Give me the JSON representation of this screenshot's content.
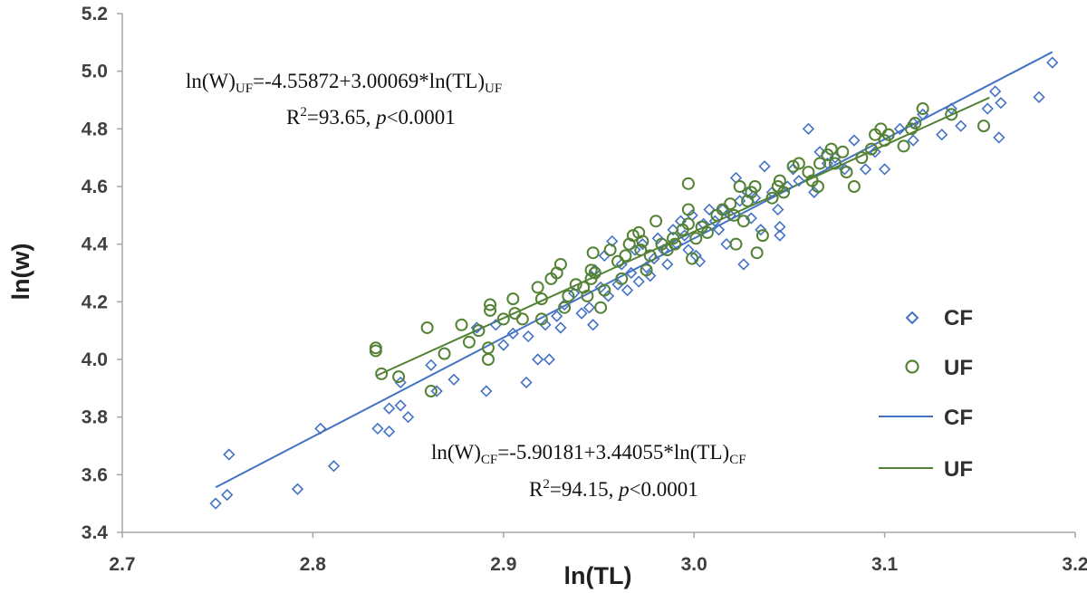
{
  "chart_data": {
    "type": "scatter",
    "xlabel": "ln(TL)",
    "ylabel": "ln(w)",
    "xlim": [
      2.7,
      3.2
    ],
    "ylim": [
      3.4,
      5.2
    ],
    "xticks": [
      "2.7",
      "2.8",
      "2.9",
      "3.0",
      "3.1",
      "3.2"
    ],
    "yticks": [
      "3.4",
      "3.6",
      "3.8",
      "4.0",
      "4.2",
      "4.4",
      "4.6",
      "4.8",
      "5.0",
      "5.2"
    ],
    "grid": false,
    "legend_position": "right",
    "colors": {
      "CF": "#4472C4",
      "UF": "#548235"
    },
    "series": [
      {
        "name": "CF",
        "marker": "diamond",
        "points": [
          [
            2.749,
            3.5
          ],
          [
            2.755,
            3.53
          ],
          [
            2.756,
            3.67
          ],
          [
            2.792,
            3.55
          ],
          [
            2.804,
            3.76
          ],
          [
            2.811,
            3.63
          ],
          [
            2.834,
            3.76
          ],
          [
            2.84,
            3.75
          ],
          [
            2.84,
            3.83
          ],
          [
            2.846,
            3.84
          ],
          [
            2.85,
            3.8
          ],
          [
            2.846,
            3.92
          ],
          [
            2.862,
            3.98
          ],
          [
            2.865,
            3.89
          ],
          [
            2.874,
            3.93
          ],
          [
            2.886,
            4.11
          ],
          [
            2.891,
            3.89
          ],
          [
            2.896,
            4.12
          ],
          [
            2.9,
            4.05
          ],
          [
            2.905,
            4.09
          ],
          [
            2.912,
            3.92
          ],
          [
            2.913,
            4.08
          ],
          [
            2.918,
            4.0
          ],
          [
            2.922,
            4.12
          ],
          [
            2.924,
            4.0
          ],
          [
            2.928,
            4.15
          ],
          [
            2.93,
            4.11
          ],
          [
            2.932,
            4.19
          ],
          [
            2.937,
            4.23
          ],
          [
            2.941,
            4.16
          ],
          [
            2.945,
            4.18
          ],
          [
            2.947,
            4.12
          ],
          [
            2.948,
            4.31
          ],
          [
            2.951,
            4.25
          ],
          [
            2.953,
            4.36
          ],
          [
            2.955,
            4.22
          ],
          [
            2.957,
            4.41
          ],
          [
            2.96,
            4.26
          ],
          [
            2.962,
            4.33
          ],
          [
            2.965,
            4.24
          ],
          [
            2.967,
            4.3
          ],
          [
            2.969,
            4.38
          ],
          [
            2.971,
            4.27
          ],
          [
            2.973,
            4.4
          ],
          [
            2.975,
            4.32
          ],
          [
            2.977,
            4.29
          ],
          [
            2.979,
            4.35
          ],
          [
            2.981,
            4.42
          ],
          [
            2.984,
            4.38
          ],
          [
            2.986,
            4.33
          ],
          [
            2.989,
            4.45
          ],
          [
            2.991,
            4.4
          ],
          [
            2.993,
            4.48
          ],
          [
            2.995,
            4.43
          ],
          [
            2.997,
            4.38
          ],
          [
            2.999,
            4.5
          ],
          [
            3.001,
            4.36
          ],
          [
            3.003,
            4.34
          ],
          [
            3.005,
            4.47
          ],
          [
            3.008,
            4.52
          ],
          [
            3.011,
            4.48
          ],
          [
            3.013,
            4.45
          ],
          [
            3.015,
            4.52
          ],
          [
            3.017,
            4.4
          ],
          [
            3.019,
            4.5
          ],
          [
            3.022,
            4.63
          ],
          [
            3.024,
            4.55
          ],
          [
            3.026,
            4.33
          ],
          [
            3.028,
            4.58
          ],
          [
            3.03,
            4.49
          ],
          [
            3.032,
            4.56
          ],
          [
            3.035,
            4.45
          ],
          [
            3.037,
            4.67
          ],
          [
            3.041,
            4.58
          ],
          [
            3.044,
            4.52
          ],
          [
            3.045,
            4.46
          ],
          [
            3.045,
            4.43
          ],
          [
            3.049,
            4.6
          ],
          [
            3.052,
            4.66
          ],
          [
            3.055,
            4.62
          ],
          [
            3.06,
            4.8
          ],
          [
            3.063,
            4.58
          ],
          [
            3.066,
            4.72
          ],
          [
            3.07,
            4.68
          ],
          [
            3.074,
            4.7
          ],
          [
            3.079,
            4.66
          ],
          [
            3.084,
            4.76
          ],
          [
            3.09,
            4.66
          ],
          [
            3.095,
            4.72
          ],
          [
            3.1,
            4.66
          ],
          [
            3.108,
            4.8
          ],
          [
            3.115,
            4.82
          ],
          [
            3.115,
            4.76
          ],
          [
            3.12,
            4.85
          ],
          [
            3.13,
            4.78
          ],
          [
            3.135,
            4.87
          ],
          [
            3.14,
            4.81
          ],
          [
            3.154,
            4.87
          ],
          [
            3.158,
            4.93
          ],
          [
            3.16,
            4.77
          ],
          [
            3.161,
            4.89
          ],
          [
            3.181,
            4.91
          ],
          [
            3.188,
            5.03
          ]
        ]
      },
      {
        "name": "UF",
        "marker": "circle",
        "points": [
          [
            2.833,
            4.03
          ],
          [
            2.833,
            4.04
          ],
          [
            2.836,
            3.95
          ],
          [
            2.845,
            3.94
          ],
          [
            2.86,
            4.11
          ],
          [
            2.862,
            3.89
          ],
          [
            2.869,
            4.02
          ],
          [
            2.878,
            4.12
          ],
          [
            2.882,
            4.06
          ],
          [
            2.887,
            4.1
          ],
          [
            2.892,
            4.0
          ],
          [
            2.892,
            4.04
          ],
          [
            2.893,
            4.17
          ],
          [
            2.893,
            4.19
          ],
          [
            2.9,
            4.14
          ],
          [
            2.905,
            4.21
          ],
          [
            2.906,
            4.16
          ],
          [
            2.91,
            4.14
          ],
          [
            2.918,
            4.25
          ],
          [
            2.92,
            4.21
          ],
          [
            2.92,
            4.14
          ],
          [
            2.925,
            4.28
          ],
          [
            2.928,
            4.3
          ],
          [
            2.93,
            4.33
          ],
          [
            2.932,
            4.18
          ],
          [
            2.934,
            4.22
          ],
          [
            2.938,
            4.26
          ],
          [
            2.942,
            4.25
          ],
          [
            2.944,
            4.22
          ],
          [
            2.946,
            4.31
          ],
          [
            2.946,
            4.28
          ],
          [
            2.947,
            4.37
          ],
          [
            2.948,
            4.3
          ],
          [
            2.951,
            4.18
          ],
          [
            2.953,
            4.24
          ],
          [
            2.956,
            4.38
          ],
          [
            2.96,
            4.34
          ],
          [
            2.962,
            4.28
          ],
          [
            2.964,
            4.36
          ],
          [
            2.966,
            4.4
          ],
          [
            2.968,
            4.43
          ],
          [
            2.971,
            4.44
          ],
          [
            2.972,
            4.38
          ],
          [
            2.973,
            4.41
          ],
          [
            2.975,
            4.31
          ],
          [
            2.977,
            4.36
          ],
          [
            2.98,
            4.48
          ],
          [
            2.983,
            4.4
          ],
          [
            2.986,
            4.38
          ],
          [
            2.989,
            4.42
          ],
          [
            2.99,
            4.4
          ],
          [
            2.994,
            4.45
          ],
          [
            2.997,
            4.47
          ],
          [
            2.997,
            4.52
          ],
          [
            2.997,
            4.61
          ],
          [
            2.999,
            4.35
          ],
          [
            3.001,
            4.42
          ],
          [
            3.004,
            4.46
          ],
          [
            3.007,
            4.44
          ],
          [
            3.012,
            4.5
          ],
          [
            3.015,
            4.52
          ],
          [
            3.019,
            4.54
          ],
          [
            3.021,
            4.5
          ],
          [
            3.022,
            4.4
          ],
          [
            3.024,
            4.6
          ],
          [
            3.026,
            4.48
          ],
          [
            3.028,
            4.55
          ],
          [
            3.03,
            4.58
          ],
          [
            3.032,
            4.6
          ],
          [
            3.033,
            4.37
          ],
          [
            3.036,
            4.43
          ],
          [
            3.041,
            4.56
          ],
          [
            3.044,
            4.6
          ],
          [
            3.045,
            4.62
          ],
          [
            3.047,
            4.58
          ],
          [
            3.052,
            4.67
          ],
          [
            3.055,
            4.68
          ],
          [
            3.06,
            4.65
          ],
          [
            3.062,
            4.62
          ],
          [
            3.065,
            4.6
          ],
          [
            3.066,
            4.68
          ],
          [
            3.07,
            4.71
          ],
          [
            3.072,
            4.73
          ],
          [
            3.074,
            4.68
          ],
          [
            3.078,
            4.72
          ],
          [
            3.08,
            4.65
          ],
          [
            3.084,
            4.6
          ],
          [
            3.088,
            4.7
          ],
          [
            3.093,
            4.73
          ],
          [
            3.095,
            4.78
          ],
          [
            3.098,
            4.8
          ],
          [
            3.1,
            4.76
          ],
          [
            3.102,
            4.78
          ],
          [
            3.11,
            4.74
          ],
          [
            3.114,
            4.8
          ],
          [
            3.116,
            4.82
          ],
          [
            3.12,
            4.87
          ],
          [
            3.135,
            4.85
          ],
          [
            3.152,
            4.81
          ]
        ]
      }
    ],
    "fit_lines": [
      {
        "name": "CF",
        "intercept": -5.90181,
        "slope": 3.44055,
        "x_range": [
          2.749,
          3.188
        ]
      },
      {
        "name": "UF",
        "intercept": -4.55872,
        "slope": 3.00069,
        "x_range": [
          2.833,
          3.155
        ]
      }
    ],
    "annotations": {
      "uf": {
        "pre": "ln(W)",
        "sub1": "UF",
        "mid": "=-4.55872+3.00069*ln(TL)",
        "sub2": "UF",
        "r2_pre": "R",
        "r2_sup": "2",
        "r2_mid": "=93.65, ",
        "p_italic": "p",
        "p_rest": "<0.0001"
      },
      "cf": {
        "pre": "ln(W)",
        "sub1": "CF",
        "mid": "=-5.90181+3.44055*ln(TL)",
        "sub2": "CF",
        "r2_pre": "R",
        "r2_sup": "2",
        "r2_mid": "=94.15, ",
        "p_italic": "p",
        "p_rest": "<0.0001"
      }
    },
    "legend": [
      {
        "label": "CF",
        "kind": "marker",
        "series": "CF"
      },
      {
        "label": "UF",
        "kind": "marker",
        "series": "UF"
      },
      {
        "label": "CF",
        "kind": "line",
        "series": "CF"
      },
      {
        "label": "UF",
        "kind": "line",
        "series": "UF"
      }
    ]
  }
}
